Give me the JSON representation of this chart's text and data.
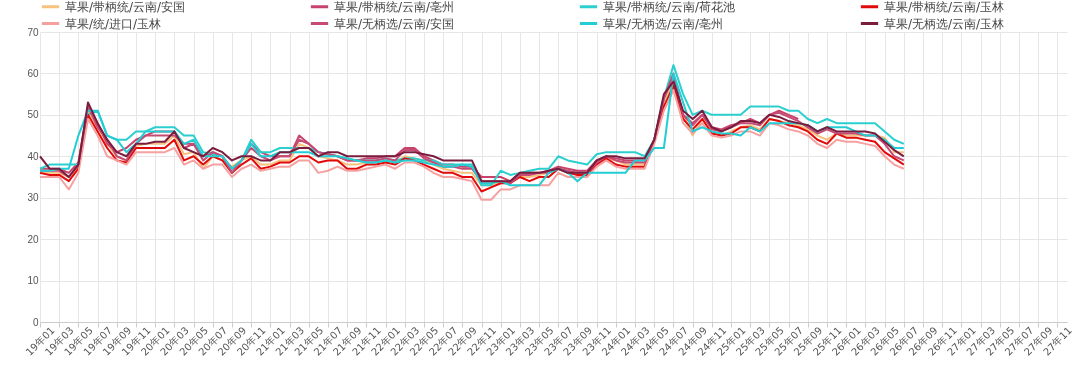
{
  "chart_data": {
    "type": "line",
    "categories": [
      "19年01",
      null,
      "19年03",
      null,
      "19年05",
      null,
      "19年07",
      null,
      "19年09",
      null,
      "19年11",
      null,
      "20年01",
      null,
      "20年03",
      null,
      "20年05",
      null,
      "20年07",
      null,
      "20年09",
      null,
      "20年11",
      null,
      "21年01",
      null,
      "21年03",
      null,
      "21年05",
      null,
      "21年07",
      null,
      "21年09",
      null,
      "21年11",
      null,
      "22年01",
      null,
      "22年03",
      null,
      "22年05",
      null,
      "22年07",
      null,
      "22年09",
      null,
      "22年11",
      null,
      "23年01",
      null,
      "23年03",
      null,
      "23年05",
      null,
      "23年07",
      null,
      "23年09",
      null,
      "23年11",
      null,
      "24年01",
      null,
      "24年03",
      null,
      "24年05",
      null,
      "24年07",
      null,
      "24年09",
      null,
      "24年11",
      null,
      "25年01",
      null,
      "25年03",
      null,
      "25年05",
      null,
      "25年07",
      null,
      "25年09",
      null,
      "25年11",
      null,
      "26年01",
      null,
      "26年03",
      null,
      "26年05",
      null,
      "26年07",
      null,
      "26年09",
      null,
      "26年11",
      null,
      "27年01",
      null,
      "27年03",
      null,
      "27年05",
      null,
      "27年07",
      null,
      "27年09",
      null,
      "27年11",
      null
    ],
    "series": [
      {
        "name": "草果/带柄统/云南/安国",
        "color": "#f7c27e",
        "values": [
          36,
          36,
          36,
          35,
          37,
          51,
          47,
          43,
          40,
          39,
          42.5,
          43,
          43,
          43,
          45,
          40.5,
          41,
          37,
          40,
          39,
          37.5,
          39,
          40,
          38,
          38,
          39,
          39,
          43,
          42,
          40,
          39.5,
          39,
          38,
          38,
          38.5,
          38.5,
          39,
          38.5,
          40,
          39.5,
          39,
          38,
          37,
          36.5,
          36,
          36,
          33,
          33,
          34,
          34,
          35,
          35,
          35.5,
          36,
          37.5,
          36,
          36,
          35.5,
          38.5,
          39.5,
          39,
          38,
          38,
          38,
          44,
          53,
          58,
          50,
          45,
          49,
          46,
          45,
          46,
          47,
          47.5,
          46.5,
          49,
          48.5,
          48,
          47.5,
          46.5,
          45,
          44,
          45.5,
          45,
          45,
          45,
          45,
          44.5,
          41,
          41,
          null,
          null,
          null,
          null,
          null,
          null,
          null,
          null,
          null,
          null,
          null,
          null,
          null,
          null,
          null,
          null,
          null
        ]
      },
      {
        "name": "草果/带柄统/云南/亳州",
        "color": "#c8436c",
        "values": [
          37,
          37,
          37,
          36,
          38.5,
          52,
          48,
          43,
          41,
          42,
          44,
          45,
          46,
          46,
          46,
          42,
          43,
          40,
          41,
          40,
          37,
          39,
          43,
          41,
          40,
          40,
          40,
          45,
          43,
          41,
          40.5,
          40,
          39,
          39,
          39.5,
          39.5,
          40,
          40,
          42,
          42,
          40,
          39,
          38,
          38,
          37.5,
          37.5,
          35,
          35,
          35,
          34,
          36,
          36,
          36,
          36.5,
          37.5,
          37,
          36.5,
          36.5,
          39,
          40,
          39.5,
          39,
          39,
          39,
          44,
          54,
          59,
          50,
          48,
          50,
          47,
          46.5,
          47.5,
          48,
          49,
          48,
          50,
          51,
          50,
          49,
          null,
          null,
          null,
          null,
          null,
          null,
          null,
          null,
          null,
          null,
          null,
          null,
          null,
          null,
          null,
          null,
          null,
          null,
          null,
          null,
          null,
          null,
          null,
          null,
          null,
          null,
          null,
          null
        ]
      },
      {
        "name": "草果/带柄统/云南/荷花池",
        "color": "#2ccfd0",
        "values": [
          37,
          38,
          38,
          38,
          38,
          50,
          51,
          45,
          44,
          44,
          46,
          46,
          47,
          47,
          47,
          45,
          45,
          41,
          40.5,
          40,
          36,
          39,
          44,
          41,
          41,
          42,
          42,
          42,
          42,
          41,
          40.5,
          40,
          39.5,
          39,
          39,
          39,
          39.5,
          39,
          39.5,
          39.5,
          39,
          39,
          38,
          38,
          38,
          38,
          33,
          33,
          36.5,
          35.5,
          36,
          36.5,
          37,
          37,
          40,
          39,
          38.5,
          38,
          40.5,
          41,
          41,
          41,
          41,
          40,
          44,
          54,
          62,
          55,
          50,
          51,
          50,
          50,
          50,
          50,
          52,
          52,
          52,
          52,
          51,
          51,
          49,
          48,
          49,
          48,
          48,
          48,
          48,
          48,
          46,
          44,
          43,
          null,
          null,
          null,
          null,
          null,
          null,
          null,
          null,
          null,
          null,
          null,
          null,
          null,
          null,
          null,
          null,
          null
        ]
      },
      {
        "name": "草果/带柄统/云南/玉林",
        "color": "#e10a0a",
        "values": [
          36,
          35.5,
          35.5,
          34,
          37,
          50,
          46,
          42,
          39,
          38.5,
          42,
          42,
          42,
          42,
          44,
          39,
          40,
          38,
          40,
          39,
          36,
          38,
          39.5,
          37,
          37.5,
          38.5,
          38.5,
          40,
          40,
          38.5,
          39,
          39,
          37,
          37,
          38,
          38,
          38.5,
          38,
          39.5,
          39,
          38,
          37,
          36,
          36,
          35,
          35,
          31.5,
          32.5,
          33.5,
          33.5,
          35,
          34,
          35,
          35,
          37,
          36,
          35.5,
          35.5,
          38,
          39.5,
          38,
          37.5,
          37.5,
          37.5,
          44,
          52,
          57,
          49,
          46.5,
          49,
          45.5,
          45,
          45.5,
          47,
          47,
          46,
          49,
          48.5,
          47.5,
          47,
          46,
          44,
          43,
          45.5,
          44.5,
          44.5,
          44,
          43.5,
          41,
          39.5,
          38,
          null,
          null,
          null,
          null,
          null,
          null,
          null,
          null,
          null,
          null,
          null,
          null,
          null,
          null,
          null,
          null,
          null
        ]
      },
      {
        "name": "草果/统/进口/玉林",
        "color": "#f6a1a0",
        "values": [
          35,
          35,
          35,
          32,
          36,
          49,
          45,
          40,
          39,
          38,
          41,
          41,
          41,
          41,
          42,
          38,
          39,
          37,
          38,
          38,
          35,
          37,
          38,
          36.5,
          37,
          37.5,
          37.5,
          39,
          39,
          36,
          36.5,
          37.5,
          36.5,
          36.5,
          37,
          37.5,
          38,
          37,
          38.5,
          38.5,
          37.5,
          36,
          35,
          35,
          34.5,
          34,
          29.5,
          29.5,
          32,
          32,
          33,
          33,
          33,
          33,
          36,
          35,
          35,
          35,
          37.5,
          39,
          37.5,
          37,
          37,
          37,
          43,
          51,
          56,
          48,
          45.5,
          48,
          45,
          44.5,
          45,
          46,
          46,
          45,
          48,
          47.5,
          46.5,
          46,
          45,
          43,
          42,
          44,
          43.5,
          43.5,
          43,
          42.5,
          40,
          38,
          37,
          null,
          null,
          null,
          null,
          null,
          null,
          null,
          null,
          null,
          null,
          null,
          null,
          null,
          null,
          null,
          null,
          null
        ]
      },
      {
        "name": "草果/无柄选/云南/安国",
        "color": "#c64a74",
        "values": [
          36.5,
          36.5,
          36.5,
          35,
          38,
          52,
          47,
          44,
          40,
          39,
          43,
          45,
          45,
          45,
          45,
          43,
          43,
          39,
          41,
          40,
          36,
          39,
          42,
          40,
          39,
          40,
          40,
          44,
          43,
          41,
          40.5,
          40,
          39,
          39,
          39,
          39,
          39.5,
          39,
          41.5,
          41.5,
          39.5,
          38.5,
          37.5,
          37.5,
          37,
          37,
          34,
          34,
          34,
          33.5,
          35.5,
          35.5,
          36,
          36,
          37,
          36.5,
          36,
          36,
          38.5,
          40,
          39,
          38.5,
          38.5,
          38.5,
          44,
          54,
          60,
          50,
          47.5,
          50,
          46.5,
          46,
          47,
          48,
          48,
          47.5,
          50,
          50.5,
          49.5,
          48.5,
          47,
          45.5,
          46.5,
          45.5,
          45.5,
          45.5,
          45,
          45,
          43,
          40,
          39,
          null,
          null,
          null,
          null,
          null,
          null,
          null,
          null,
          null,
          null,
          null,
          null,
          null,
          null,
          null,
          null,
          null
        ]
      },
      {
        "name": "草果/无柄选/云南/亳州",
        "color": "#22cdd3",
        "values": [
          36.5,
          36.5,
          37,
          37,
          45,
          51,
          51,
          45,
          44,
          41,
          43,
          46,
          46,
          46,
          46,
          43,
          44,
          40,
          40,
          40,
          37,
          39,
          43,
          40,
          40,
          41,
          41,
          41,
          41,
          40,
          40,
          40,
          39.5,
          39,
          38.5,
          38.5,
          39,
          38.5,
          39,
          39,
          38.5,
          38,
          37.5,
          37.5,
          38,
          37.5,
          33.5,
          33.5,
          34,
          33,
          33,
          33,
          33,
          36,
          37,
          36,
          34,
          36,
          36,
          36,
          36,
          36,
          39,
          39,
          42,
          42,
          60,
          53,
          46,
          47,
          46,
          45.5,
          45.5,
          45,
          47,
          46,
          48,
          48,
          48,
          48,
          47.5,
          46,
          47,
          47,
          47,
          46,
          45,
          45,
          44,
          42,
          42,
          null,
          null,
          null,
          null,
          null,
          null,
          null,
          null,
          null,
          null,
          null,
          null,
          null,
          null,
          null,
          null,
          null
        ]
      },
      {
        "name": "草果/无柄选/云南/玉林",
        "color": "#7a1c3e",
        "values": [
          40,
          37,
          37,
          35,
          38,
          53,
          48,
          44,
          41,
          40,
          43,
          43,
          43.5,
          43.5,
          46,
          42,
          41,
          40,
          42,
          41,
          39,
          40,
          40,
          39,
          39,
          41,
          41,
          42,
          42,
          40,
          41,
          41,
          40,
          40,
          40,
          40,
          40,
          40,
          41,
          41,
          40.5,
          40,
          39,
          39,
          39,
          39,
          34,
          34,
          34,
          34,
          36,
          36,
          36,
          36.5,
          37,
          36,
          36,
          36,
          39,
          40,
          40,
          39.5,
          39.5,
          39.5,
          44,
          55,
          58,
          51,
          49,
          51,
          47,
          46,
          47,
          48.5,
          48.5,
          48,
          50,
          49.5,
          48.5,
          48,
          47.5,
          46,
          47,
          46,
          46,
          46,
          46,
          45.5,
          43.5,
          41.5,
          40,
          null,
          null,
          null,
          null,
          null,
          null,
          null,
          null,
          null,
          null,
          null,
          null,
          null,
          null,
          null,
          null,
          null
        ]
      }
    ],
    "ylim": [
      0,
      70
    ],
    "yticks": [
      0,
      10,
      20,
      30,
      40,
      50,
      60,
      70
    ],
    "grid": true,
    "legend": "top"
  }
}
